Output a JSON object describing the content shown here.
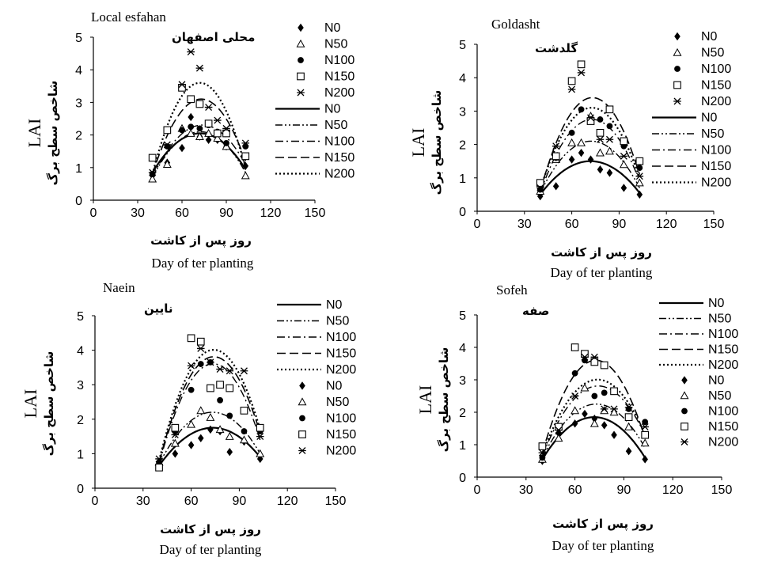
{
  "chart_data": [
    {
      "type": "scatter",
      "title": "Local esfahan",
      "subtitle": "محلی اصفهان",
      "ylabel": "LAI",
      "ylabel_fa": "شاخص سطح برگ",
      "xlabel_fa": "روز پس از کاشت",
      "xlabel": "Day of ter planting",
      "xlim": [
        0,
        150
      ],
      "ylim": [
        0,
        5
      ],
      "xticks": [
        "0",
        "30",
        "60",
        "90",
        "120",
        "150"
      ],
      "yticks": [
        "0",
        "1",
        "2",
        "3",
        "4",
        "5"
      ],
      "legend_placement": "right",
      "series": [
        {
          "name": "N0",
          "marker": "diamond",
          "points": [
            [
              40,
              0.75
            ],
            [
              50,
              1.15
            ],
            [
              60,
              1.6
            ],
            [
              66,
              2.55
            ],
            [
              72,
              1.95
            ],
            [
              78,
              1.85
            ],
            [
              84,
              1.85
            ],
            [
              90,
              1.65
            ],
            [
              103,
              1.05
            ]
          ],
          "curve": [
            0.85,
            2.05,
            0.95
          ]
        },
        {
          "name": "N50",
          "marker": "triangle",
          "points": [
            [
              40,
              0.65
            ],
            [
              50,
              1.1
            ],
            [
              60,
              2.2
            ],
            [
              66,
              2.05
            ],
            [
              72,
              1.95
            ],
            [
              78,
              2.05
            ],
            [
              84,
              1.9
            ],
            [
              90,
              1.65
            ],
            [
              103,
              0.75
            ]
          ],
          "curve": [
            0.7,
            2.1,
            0.85
          ]
        },
        {
          "name": "N100",
          "marker": "circle",
          "points": [
            [
              40,
              0.8
            ],
            [
              50,
              1.65
            ],
            [
              60,
              2.15
            ],
            [
              66,
              2.25
            ],
            [
              72,
              2.2
            ],
            [
              78,
              2.3
            ],
            [
              84,
              2.1
            ],
            [
              90,
              1.75
            ],
            [
              103,
              1.65
            ]
          ],
          "curve": [
            0.7,
            2.3,
            1.1
          ]
        },
        {
          "name": "N150",
          "marker": "square",
          "points": [
            [
              40,
              1.3
            ],
            [
              50,
              2.15
            ],
            [
              60,
              3.45
            ],
            [
              66,
              3.1
            ],
            [
              72,
              2.95
            ],
            [
              78,
              2.35
            ],
            [
              84,
              2.05
            ],
            [
              90,
              2.05
            ],
            [
              103,
              1.35
            ]
          ],
          "curve": [
            0.8,
            3.1,
            1.2
          ]
        },
        {
          "name": "N200",
          "marker": "star",
          "points": [
            [
              40,
              0.85
            ],
            [
              50,
              1.7
            ],
            [
              60,
              3.55
            ],
            [
              66,
              4.55
            ],
            [
              72,
              4.05
            ],
            [
              78,
              2.85
            ],
            [
              84,
              2.45
            ],
            [
              90,
              2.2
            ],
            [
              103,
              1.75
            ]
          ],
          "curve": [
            0.8,
            3.6,
            1.0
          ]
        }
      ]
    },
    {
      "type": "scatter",
      "title": "Goldasht",
      "subtitle": "گلدشت",
      "ylabel": "LAI",
      "ylabel_fa": "شاخص سطح برگ",
      "xlabel_fa": "روز پس از کاشت",
      "xlabel": "Day of ter planting",
      "xlim": [
        0,
        150
      ],
      "ylim": [
        0,
        5
      ],
      "xticks": [
        "0",
        "30",
        "60",
        "90",
        "120",
        "150"
      ],
      "yticks": [
        "0",
        "1",
        "2",
        "3",
        "4",
        "5"
      ],
      "legend_placement": "right",
      "series": [
        {
          "name": "N0",
          "marker": "diamond",
          "points": [
            [
              40,
              0.45
            ],
            [
              50,
              0.75
            ],
            [
              60,
              1.55
            ],
            [
              66,
              1.75
            ],
            [
              72,
              1.55
            ],
            [
              78,
              1.25
            ],
            [
              84,
              1.15
            ],
            [
              93,
              0.7
            ],
            [
              103,
              0.5
            ]
          ],
          "curve": [
            0.5,
            1.5,
            0.55
          ]
        },
        {
          "name": "N50",
          "marker": "triangle",
          "points": [
            [
              40,
              0.6
            ],
            [
              50,
              1.55
            ],
            [
              60,
              2.05
            ],
            [
              66,
              2.05
            ],
            [
              72,
              2.85
            ],
            [
              78,
              1.75
            ],
            [
              84,
              1.8
            ],
            [
              93,
              1.4
            ],
            [
              103,
              0.85
            ]
          ],
          "curve": [
            0.55,
            2.1,
            0.7
          ]
        },
        {
          "name": "N100",
          "marker": "circle",
          "points": [
            [
              40,
              0.65
            ],
            [
              50,
              1.6
            ],
            [
              60,
              2.35
            ],
            [
              66,
              3.05
            ],
            [
              72,
              2.75
            ],
            [
              78,
              2.75
            ],
            [
              84,
              2.55
            ],
            [
              93,
              1.95
            ],
            [
              103,
              1.3
            ]
          ],
          "curve": [
            0.55,
            2.75,
            0.9
          ]
        },
        {
          "name": "N150",
          "marker": "square",
          "points": [
            [
              40,
              0.85
            ],
            [
              50,
              1.65
            ],
            [
              60,
              3.9
            ],
            [
              66,
              4.4
            ],
            [
              72,
              2.7
            ],
            [
              78,
              2.35
            ],
            [
              84,
              3.05
            ],
            [
              93,
              2.1
            ],
            [
              103,
              1.5
            ]
          ],
          "curve": [
            0.6,
            3.4,
            1.1
          ]
        },
        {
          "name": "N200",
          "marker": "star",
          "points": [
            [
              40,
              0.7
            ],
            [
              50,
              1.95
            ],
            [
              60,
              3.65
            ],
            [
              66,
              4.15
            ],
            [
              72,
              2.8
            ],
            [
              78,
              2.15
            ],
            [
              84,
              2.15
            ],
            [
              93,
              1.65
            ],
            [
              103,
              1.05
            ]
          ],
          "curve": [
            0.65,
            3.1,
            1.0
          ]
        }
      ]
    },
    {
      "type": "scatter",
      "title": "Naein",
      "subtitle": "نایین",
      "ylabel": "LAI",
      "ylabel_fa": "شاخص سطح برگ",
      "xlabel_fa": "روز پس از کاشت",
      "xlabel": "Day of ter planting",
      "xlim": [
        0,
        150
      ],
      "ylim": [
        0,
        5
      ],
      "xticks": [
        "0",
        "30",
        "60",
        "90",
        "120",
        "150"
      ],
      "yticks": [
        "0",
        "1",
        "2",
        "3",
        "4",
        "5"
      ],
      "legend_placement": "top-right",
      "series": [
        {
          "name": "N0",
          "marker": "diamond",
          "points": [
            [
              40,
              0.7
            ],
            [
              50,
              1.0
            ],
            [
              60,
              1.25
            ],
            [
              66,
              1.45
            ],
            [
              72,
              1.7
            ],
            [
              78,
              1.65
            ],
            [
              84,
              1.05
            ],
            [
              93,
              1.35
            ],
            [
              103,
              0.85
            ]
          ],
          "curve": [
            0.65,
            1.75,
            0.9
          ]
        },
        {
          "name": "N50",
          "marker": "triangle",
          "points": [
            [
              40,
              0.75
            ],
            [
              50,
              1.3
            ],
            [
              60,
              1.85
            ],
            [
              66,
              2.25
            ],
            [
              72,
              2.05
            ],
            [
              78,
              1.7
            ],
            [
              84,
              1.5
            ],
            [
              93,
              1.4
            ],
            [
              103,
              1.0
            ]
          ],
          "curve": [
            0.7,
            2.2,
            1.0
          ]
        },
        {
          "name": "N100",
          "marker": "circle",
          "points": [
            [
              40,
              0.75
            ],
            [
              50,
              1.65
            ],
            [
              60,
              2.85
            ],
            [
              66,
              3.6
            ],
            [
              72,
              3.65
            ],
            [
              78,
              2.55
            ],
            [
              84,
              2.1
            ],
            [
              93,
              1.65
            ],
            [
              103,
              1.65
            ]
          ],
          "curve": [
            0.7,
            3.6,
            1.4
          ]
        },
        {
          "name": "N150",
          "marker": "square",
          "points": [
            [
              40,
              0.6
            ],
            [
              50,
              1.75
            ],
            [
              60,
              4.35
            ],
            [
              66,
              4.25
            ],
            [
              72,
              2.9
            ],
            [
              78,
              3.0
            ],
            [
              84,
              2.9
            ],
            [
              93,
              2.25
            ],
            [
              103,
              1.75
            ]
          ],
          "curve": [
            0.75,
            3.8,
            1.6
          ]
        },
        {
          "name": "N200",
          "marker": "star",
          "points": [
            [
              40,
              0.85
            ],
            [
              50,
              1.55
            ],
            [
              60,
              3.55
            ],
            [
              66,
              4.05
            ],
            [
              72,
              3.65
            ],
            [
              78,
              3.45
            ],
            [
              84,
              3.4
            ],
            [
              93,
              3.4
            ],
            [
              103,
              1.5
            ]
          ],
          "curve": [
            0.8,
            4.0,
            1.7
          ]
        }
      ]
    },
    {
      "type": "scatter",
      "title": "Sofeh",
      "subtitle": "صفه",
      "ylabel": "LAI",
      "ylabel_fa": "شاخص سطح برگ",
      "xlabel_fa": "روز پس از کاشت",
      "xlabel": "Day of ter planting",
      "xlim": [
        0,
        150
      ],
      "ylim": [
        0,
        5
      ],
      "xticks": [
        "0",
        "30",
        "60",
        "90",
        "120",
        "150"
      ],
      "yticks": [
        "0",
        "1",
        "2",
        "3",
        "4",
        "5"
      ],
      "legend_placement": "top-right",
      "series": [
        {
          "name": "N0",
          "marker": "diamond",
          "points": [
            [
              40,
              0.5
            ],
            [
              50,
              1.35
            ],
            [
              60,
              1.65
            ],
            [
              66,
              1.95
            ],
            [
              72,
              1.8
            ],
            [
              78,
              1.6
            ],
            [
              84,
              1.3
            ],
            [
              93,
              0.8
            ],
            [
              103,
              0.55
            ]
          ],
          "curve": [
            0.55,
            1.85,
            0.6
          ]
        },
        {
          "name": "N50",
          "marker": "triangle",
          "points": [
            [
              40,
              0.55
            ],
            [
              50,
              1.2
            ],
            [
              60,
              2.05
            ],
            [
              66,
              2.75
            ],
            [
              72,
              1.65
            ],
            [
              78,
              2.05
            ],
            [
              84,
              2.0
            ],
            [
              93,
              1.55
            ],
            [
              103,
              1.05
            ]
          ],
          "curve": [
            0.6,
            2.25,
            0.9
          ]
        },
        {
          "name": "N100",
          "marker": "circle",
          "points": [
            [
              40,
              0.6
            ],
            [
              50,
              1.55
            ],
            [
              60,
              3.2
            ],
            [
              66,
              3.6
            ],
            [
              72,
              2.5
            ],
            [
              78,
              2.6
            ],
            [
              84,
              2.65
            ],
            [
              93,
              2.1
            ],
            [
              103,
              1.7
            ]
          ],
          "curve": [
            0.65,
            2.8,
            1.3
          ]
        },
        {
          "name": "N150",
          "marker": "square",
          "points": [
            [
              40,
              0.95
            ],
            [
              50,
              1.55
            ],
            [
              60,
              4.0
            ],
            [
              66,
              3.8
            ],
            [
              72,
              3.55
            ],
            [
              78,
              3.45
            ],
            [
              84,
              2.65
            ],
            [
              93,
              1.85
            ],
            [
              103,
              1.3
            ]
          ],
          "curve": [
            0.75,
            3.6,
            1.2
          ]
        },
        {
          "name": "N200",
          "marker": "star",
          "points": [
            [
              40,
              0.75
            ],
            [
              50,
              1.45
            ],
            [
              60,
              2.5
            ],
            [
              66,
              3.7
            ],
            [
              72,
              3.7
            ],
            [
              78,
              2.1
            ],
            [
              84,
              2.1
            ],
            [
              93,
              2.15
            ],
            [
              103,
              1.55
            ]
          ],
          "curve": [
            0.7,
            3.0,
            1.3
          ]
        }
      ]
    }
  ]
}
